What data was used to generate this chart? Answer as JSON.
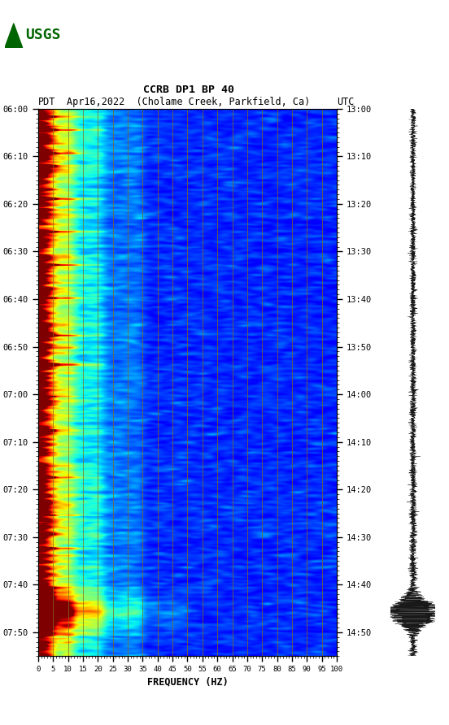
{
  "title_line1": "CCRB DP1 BP 40",
  "title_line2_left": "PDT",
  "title_line2_mid": "Apr16,2022  (Cholame Creek, Parkfield, Ca)",
  "title_line2_right": "UTC",
  "xlabel": "FREQUENCY (HZ)",
  "freq_ticks": [
    0,
    5,
    10,
    15,
    20,
    25,
    30,
    35,
    40,
    45,
    50,
    55,
    60,
    65,
    70,
    75,
    80,
    85,
    90,
    95,
    100
  ],
  "left_time_labels": [
    "06:00",
    "06:10",
    "06:20",
    "06:30",
    "06:40",
    "06:50",
    "07:00",
    "07:10",
    "07:20",
    "07:30",
    "07:40",
    "07:50"
  ],
  "right_time_labels": [
    "13:00",
    "13:10",
    "13:20",
    "13:30",
    "13:40",
    "13:50",
    "14:00",
    "14:10",
    "14:20",
    "14:30",
    "14:40",
    "14:50"
  ],
  "vline_freqs": [
    5,
    10,
    15,
    20,
    25,
    30,
    35,
    40,
    45,
    50,
    55,
    60,
    65,
    70,
    75,
    80,
    85,
    90,
    95
  ],
  "vline_color": "#8B6914",
  "logo_color": "#006400",
  "fig_bg": "#ffffff",
  "total_minutes": 115,
  "n_time": 580,
  "n_freq": 100
}
